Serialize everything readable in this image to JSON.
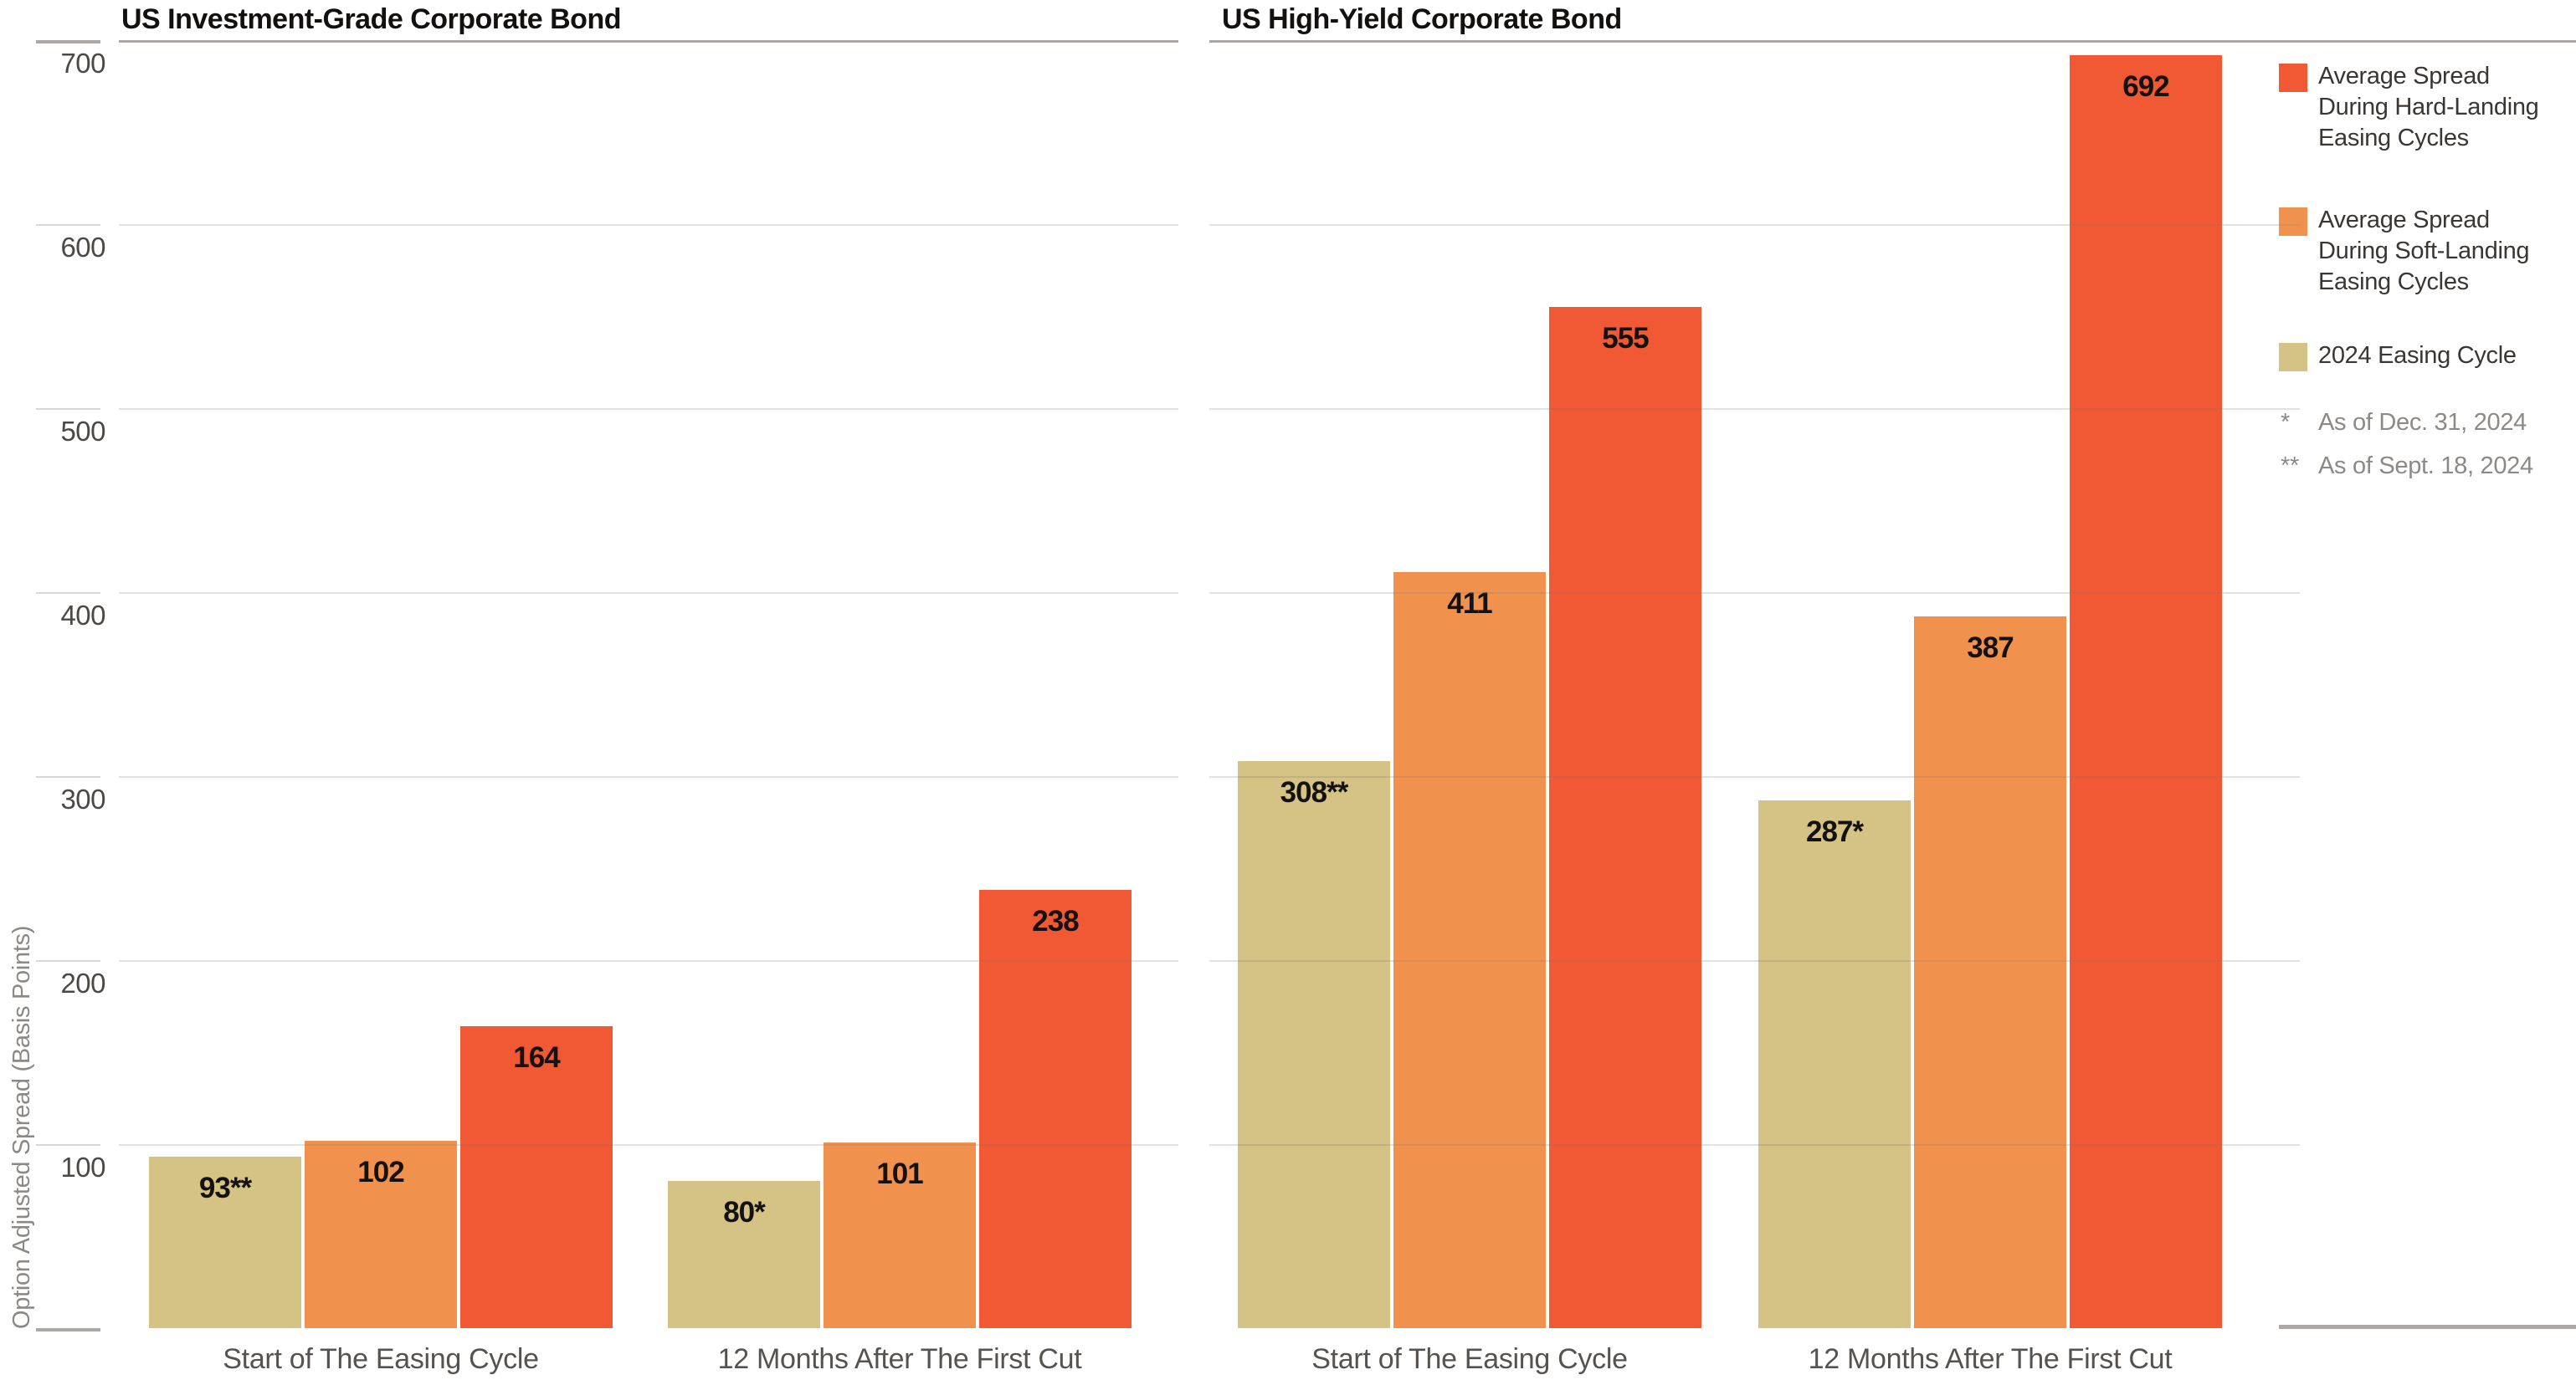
{
  "chart_data": [
    {
      "type": "bar",
      "title": "US Investment-Grade Corporate Bond",
      "ylabel": "Option Adjusted Spread (Basis Points)",
      "ylim": [
        0,
        700
      ],
      "ytick_step": 100,
      "yticks": [
        100,
        200,
        300,
        400,
        500,
        600,
        700
      ],
      "grid": true,
      "categories": [
        "Start of The Easing Cycle",
        "12 Months After The First Cut"
      ],
      "series": [
        {
          "name": "2024 Easing Cycle",
          "color": "#D5C285",
          "values": [
            93,
            80
          ],
          "value_labels": [
            "93**",
            "80*"
          ]
        },
        {
          "name": "Average Spread During Soft-Landing Easing Cycles",
          "color": "#F0924D",
          "values": [
            102,
            101
          ],
          "value_labels": [
            "102",
            "101"
          ]
        },
        {
          "name": "Average Spread During Hard-Landing Easing Cycles",
          "color": "#F15834",
          "values": [
            164,
            238
          ],
          "value_labels": [
            "164",
            "238"
          ]
        }
      ]
    },
    {
      "type": "bar",
      "title": "US High-Yield Corporate Bond",
      "ylabel": "Option Adjusted Spread (Basis Points)",
      "ylim": [
        0,
        700
      ],
      "ytick_step": 100,
      "yticks": [
        100,
        200,
        300,
        400,
        500,
        600,
        700
      ],
      "grid": true,
      "categories": [
        "Start of The Easing Cycle",
        "12 Months After The First Cut"
      ],
      "series": [
        {
          "name": "2024 Easing Cycle",
          "color": "#D5C285",
          "values": [
            308,
            287
          ],
          "value_labels": [
            "308**",
            "287*"
          ]
        },
        {
          "name": "Average Spread During Soft-Landing Easing Cycles",
          "color": "#F0924D",
          "values": [
            411,
            387
          ],
          "value_labels": [
            "411",
            "387"
          ]
        },
        {
          "name": "Average Spread During Hard-Landing Easing Cycles",
          "color": "#F15834",
          "values": [
            555,
            692
          ],
          "value_labels": [
            "555",
            "692"
          ]
        }
      ]
    }
  ],
  "legend": {
    "items": [
      {
        "color": "#F15834",
        "lines": [
          "Average Spread",
          "During Hard-Landing",
          "Easing Cycles"
        ]
      },
      {
        "color": "#F0924D",
        "lines": [
          "Average Spread",
          "During Soft-Landing",
          "Easing Cycles"
        ]
      },
      {
        "color": "#D5C285",
        "lines": [
          "2024 Easing Cycle"
        ]
      }
    ],
    "footnotes": [
      {
        "marker": "*",
        "text": "As of Dec. 31, 2024"
      },
      {
        "marker": "**",
        "text": "As of Sept. 18, 2024"
      }
    ]
  }
}
